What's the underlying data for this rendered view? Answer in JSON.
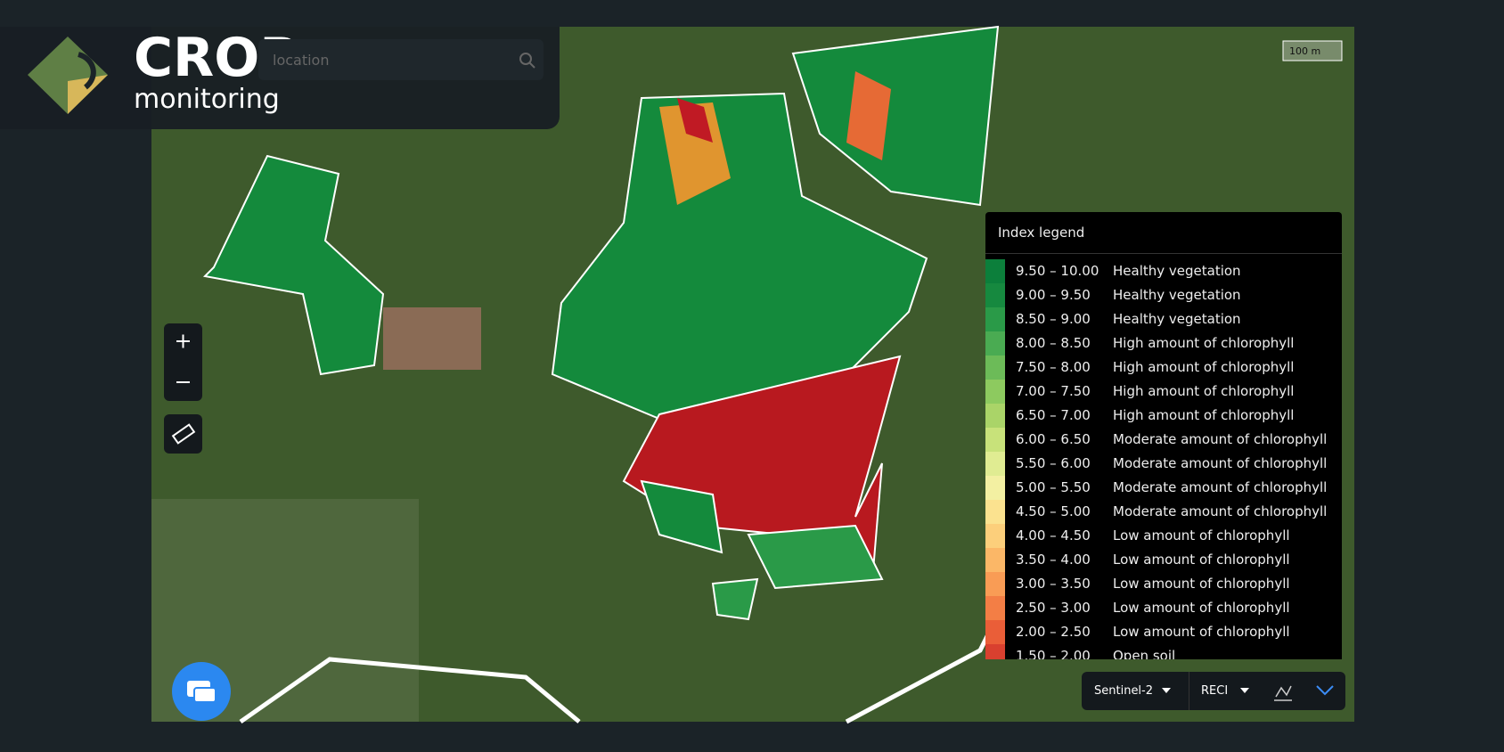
{
  "header": {
    "logo_title": "CROP",
    "logo_subtitle": "monitoring",
    "search_placeholder": "location"
  },
  "map": {
    "scale_label": "100 m"
  },
  "legend": {
    "title": "Index legend",
    "rows": [
      {
        "range": "9.50 – 10.00",
        "label": "Healthy vegetation",
        "color": "#0c7f3b"
      },
      {
        "range": "9.00 – 9.50",
        "label": "Healthy vegetation",
        "color": "#16893f"
      },
      {
        "range": "8.50 – 9.00",
        "label": "Healthy vegetation",
        "color": "#2a9a48"
      },
      {
        "range": "8.00 – 8.50",
        "label": "High amount of chlorophyll",
        "color": "#4aab52"
      },
      {
        "range": "7.50 – 8.00",
        "label": "High amount of chlorophyll",
        "color": "#6cbb58"
      },
      {
        "range": "7.00 – 7.50",
        "label": "High amount of chlorophyll",
        "color": "#8dca5f"
      },
      {
        "range": "6.50 – 7.00",
        "label": "High amount of chlorophyll",
        "color": "#aad468"
      },
      {
        "range": "6.00 – 6.50",
        "label": "Moderate amount of chlorophyll",
        "color": "#c8e27a"
      },
      {
        "range": "5.50 – 6.00",
        "label": "Moderate amount of chlorophyll",
        "color": "#e0ec92"
      },
      {
        "range": "5.00 – 5.50",
        "label": "Moderate amount of chlorophyll",
        "color": "#f3f0a2"
      },
      {
        "range": "4.50 – 5.00",
        "label": "Moderate amount of chlorophyll",
        "color": "#fbe28f"
      },
      {
        "range": "4.00 – 4.50",
        "label": "Low amount of chlorophyll",
        "color": "#fccf7b"
      },
      {
        "range": "3.50 – 4.00",
        "label": "Low amount of chlorophyll",
        "color": "#fbb767"
      },
      {
        "range": "3.00 – 3.50",
        "label": "Low amount of chlorophyll",
        "color": "#f99c55"
      },
      {
        "range": "2.50 – 3.00",
        "label": "Low amount of chlorophyll",
        "color": "#f37e45"
      },
      {
        "range": "2.00 – 2.50",
        "label": "Low amount of chlorophyll",
        "color": "#ea5e38"
      },
      {
        "range": "1.50 – 2.00",
        "label": "Open soil",
        "color": "#d9402f"
      }
    ]
  },
  "toolbar": {
    "satellite": "Sentinel-2",
    "index": "RECI"
  }
}
